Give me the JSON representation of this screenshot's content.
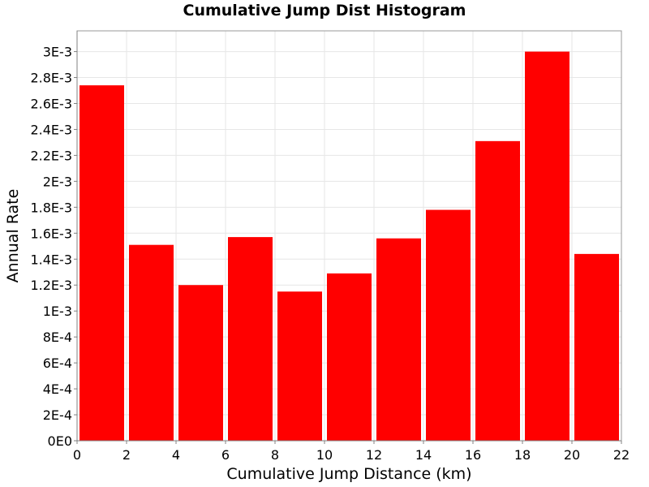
{
  "chart_data": {
    "type": "bar",
    "title": "Cumulative Jump Dist Histogram",
    "xlabel": "Cumulative Jump Distance (km)",
    "ylabel": "Annual Rate",
    "bar_color": "#ff0000",
    "bin_width": 2,
    "bins": [
      {
        "x0": 0,
        "x1": 2,
        "value": 0.00274
      },
      {
        "x0": 2,
        "x1": 4,
        "value": 0.00151
      },
      {
        "x0": 4,
        "x1": 6,
        "value": 0.0012
      },
      {
        "x0": 6,
        "x1": 8,
        "value": 0.00157
      },
      {
        "x0": 8,
        "x1": 10,
        "value": 0.00115
      },
      {
        "x0": 10,
        "x1": 12,
        "value": 0.00129
      },
      {
        "x0": 12,
        "x1": 14,
        "value": 0.00156
      },
      {
        "x0": 14,
        "x1": 16,
        "value": 0.00178
      },
      {
        "x0": 16,
        "x1": 18,
        "value": 0.00231
      },
      {
        "x0": 18,
        "x1": 20,
        "value": 0.003
      },
      {
        "x0": 20,
        "x1": 22,
        "value": 0.00144
      }
    ],
    "xlim": [
      0,
      22
    ],
    "ylim": [
      0,
      0.00316
    ],
    "x_ticks": [
      0,
      2,
      4,
      6,
      8,
      10,
      12,
      14,
      16,
      18,
      20,
      22
    ],
    "x_tick_labels": [
      "0",
      "2",
      "4",
      "6",
      "8",
      "10",
      "12",
      "14",
      "16",
      "18",
      "20",
      "22"
    ],
    "y_ticks": [
      0,
      0.0002,
      0.0004,
      0.0006,
      0.0008,
      0.001,
      0.0012,
      0.0014,
      0.0016,
      0.0018,
      0.002,
      0.0022,
      0.0024,
      0.0026,
      0.0028,
      0.003
    ],
    "y_tick_labels": [
      "0E0",
      "2E-4",
      "4E-4",
      "6E-4",
      "8E-4",
      "1E-3",
      "1.2E-3",
      "1.4E-3",
      "1.6E-3",
      "1.8E-3",
      "2E-3",
      "2.2E-3",
      "2.4E-3",
      "2.6E-3",
      "2.8E-3",
      "3E-3"
    ],
    "grid": true,
    "legend": "none"
  }
}
